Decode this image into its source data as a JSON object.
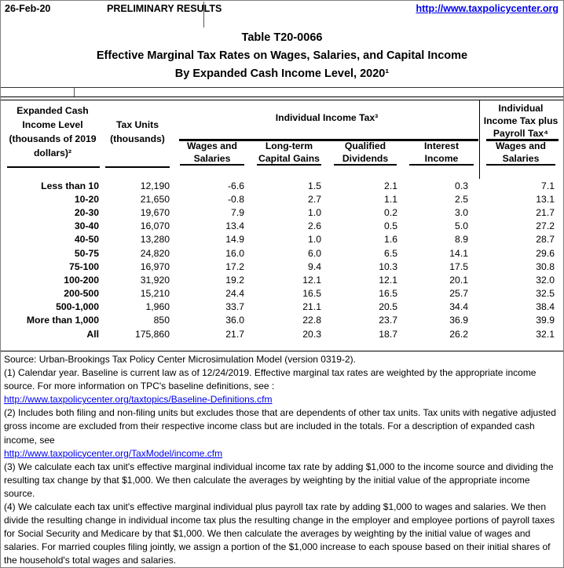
{
  "header": {
    "date": "26-Feb-20",
    "preliminary": "PRELIMINARY RESULTS",
    "site_url": "http://www.taxpolicycenter.org"
  },
  "title": {
    "number": "Table T20-0066",
    "main": "Effective Marginal Tax Rates on Wages, Salaries, and Capital Income",
    "sub": "By Expanded Cash Income Level, 2020¹"
  },
  "colors": {
    "link_blue": "#0000EE",
    "rule_black": "#000000",
    "border_gray": "#808080"
  },
  "table": {
    "income_header_lines": [
      "Expanded Cash",
      "Income Level",
      "(thousands of 2019",
      "dollars)²"
    ],
    "tax_units_header_lines": [
      "Tax Units",
      "(thousands)"
    ],
    "group_header": "Individual Income Tax³",
    "right_group_lines": [
      "Individual",
      "Income Tax plus",
      "Payroll Tax⁴"
    ],
    "sub_headers": [
      {
        "l1": "Wages and",
        "l2": "Salaries"
      },
      {
        "l1": "Long-term",
        "l2": "Capital Gains"
      },
      {
        "l1": "Qualified",
        "l2": "Dividends"
      },
      {
        "l1": "Interest",
        "l2": "Income"
      },
      {
        "l1": "Wages and",
        "l2": "Salaries"
      }
    ],
    "rows": [
      {
        "label": "Less than 10",
        "values": [
          "12,190",
          "-6.6",
          "1.5",
          "2.1",
          "0.3",
          "7.1"
        ]
      },
      {
        "label": "10-20",
        "values": [
          "21,650",
          "-0.8",
          "2.7",
          "1.1",
          "2.5",
          "13.1"
        ]
      },
      {
        "label": "20-30",
        "values": [
          "19,670",
          "7.9",
          "1.0",
          "0.2",
          "3.0",
          "21.7"
        ]
      },
      {
        "label": "30-40",
        "values": [
          "16,070",
          "13.4",
          "2.6",
          "0.5",
          "5.0",
          "27.2"
        ]
      },
      {
        "label": "40-50",
        "values": [
          "13,280",
          "14.9",
          "1.0",
          "1.6",
          "8.9",
          "28.7"
        ]
      },
      {
        "label": "50-75",
        "values": [
          "24,820",
          "16.0",
          "6.0",
          "6.5",
          "14.1",
          "29.6"
        ]
      },
      {
        "label": "75-100",
        "values": [
          "16,970",
          "17.2",
          "9.4",
          "10.3",
          "17.5",
          "30.8"
        ]
      },
      {
        "label": "100-200",
        "values": [
          "31,920",
          "19.2",
          "12.1",
          "12.1",
          "20.1",
          "32.0"
        ]
      },
      {
        "label": "200-500",
        "values": [
          "15,210",
          "24.4",
          "16.5",
          "16.5",
          "25.7",
          "32.5"
        ]
      },
      {
        "label": "500-1,000",
        "values": [
          "1,960",
          "33.7",
          "21.1",
          "20.5",
          "34.4",
          "38.4"
        ]
      },
      {
        "label": "More than 1,000",
        "values": [
          "850",
          "36.0",
          "22.8",
          "23.7",
          "36.9",
          "39.9"
        ]
      },
      {
        "label": "All",
        "values": [
          "175,860",
          "21.7",
          "20.3",
          "18.7",
          "26.2",
          "32.1"
        ]
      }
    ]
  },
  "footnotes": {
    "source": "Source: Urban-Brookings Tax Policy Center Microsimulation Model (version 0319-2).",
    "notes": [
      {
        "text": "(1) Calendar year. Baseline is current law as of 12/24/2019. Effective marginal tax rates are weighted by the appropriate income source. For more information on TPC's baseline definitions, see :",
        "link": "http://www.taxpolicycenter.org/taxtopics/Baseline-Definitions.cfm"
      },
      {
        "text": "(2) Includes both filing and non-filing units but excludes those that are dependents of other tax units. Tax units with negative adjusted gross income are excluded from their respective income class but are included in the totals. For a description of expanded cash income, see",
        "link": "http://www.taxpolicycenter.org/TaxModel/income.cfm"
      },
      {
        "text": "(3) We calculate each tax unit's effective marginal individual income tax rate by adding $1,000 to the income source and dividing the resulting tax change by that $1,000. We then calculate the averages by weighting by the initial value of the appropriate income source.",
        "link": ""
      },
      {
        "text": "(4) We calculate each tax unit's effective marginal individual plus payroll tax rate by adding $1,000 to wages and salaries. We then divide the resulting change in individual income tax plus the resulting change in the employer and employee portions of payroll taxes for Social Security and Medicare by that $1,000. We then calculate the averages by weighting by the initial value of wages and salaries. For married couples filing jointly, we assign a portion of the $1,000 increase to each spouse based on their initial shares of the household's total wages and salaries.",
        "link": ""
      }
    ]
  }
}
